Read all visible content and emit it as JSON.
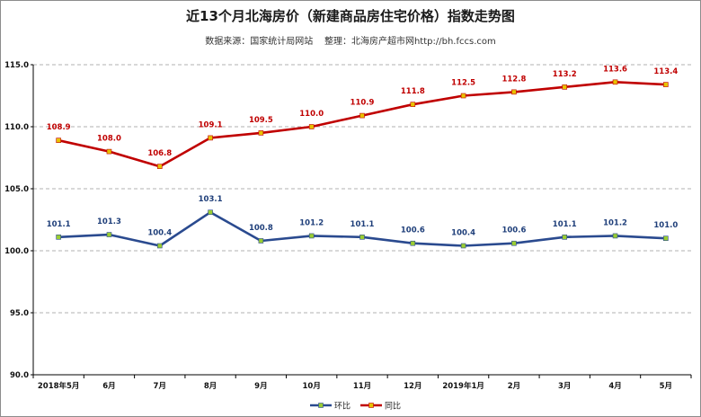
{
  "chart_data": {
    "type": "line",
    "title": "近13个月北海房价（新建商品房住宅价格）指数走势图",
    "subtitle": "数据来源：国家统计局网站    整理：北海房产超市网http://bh.fccs.com",
    "categories": [
      "2018年5月",
      "6月",
      "7月",
      "8月",
      "9月",
      "10月",
      "11月",
      "12月",
      "2019年1月",
      "2月",
      "3月",
      "4月",
      "5月"
    ],
    "series": [
      {
        "name": "环比",
        "color": "#2a4a8f",
        "marker_color": "#9acd32",
        "label_color": "#1f3f7a",
        "values": [
          101.1,
          101.3,
          100.4,
          103.1,
          100.8,
          101.2,
          101.1,
          100.6,
          100.4,
          100.6,
          101.1,
          101.2,
          101.0
        ]
      },
      {
        "name": "同比",
        "color": "#c00000",
        "marker_color": "#e8c200",
        "label_color": "#c00000",
        "values": [
          108.9,
          108.0,
          106.8,
          109.1,
          109.5,
          110.0,
          110.9,
          111.8,
          112.5,
          112.8,
          113.2,
          113.6,
          113.4
        ]
      }
    ],
    "ylim": [
      90.0,
      115.0
    ],
    "yticks": [
      "90.0",
      "95.0",
      "100.0",
      "105.0",
      "110.0",
      "115.0"
    ],
    "ytick_values": [
      90,
      95,
      100,
      105,
      110,
      115
    ],
    "grid": "horizontal dashed",
    "legend": "bottom-center"
  }
}
